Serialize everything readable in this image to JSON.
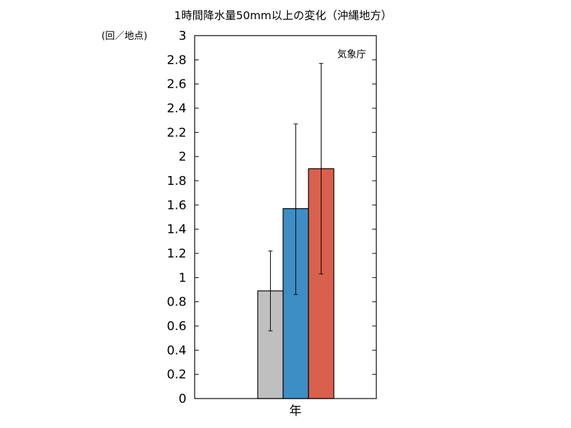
{
  "chart_data": {
    "type": "bar",
    "title": "1時間降水量50mm以上の変化（沖縄地方）",
    "ylabel": "(回／地点)",
    "xlabel": "年",
    "source": "気象庁",
    "ylim": [
      0,
      3
    ],
    "yticks": [
      "0",
      "0.2",
      "0.4",
      "0.6",
      "0.8",
      "1",
      "1.2",
      "1.4",
      "1.6",
      "1.8",
      "2",
      "2.2",
      "2.4",
      "2.6",
      "2.8",
      "3"
    ],
    "grid": false,
    "bars": [
      {
        "value": 0.89,
        "err_low": 0.56,
        "err_high": 1.22,
        "color": "#bfbfbf"
      },
      {
        "value": 1.57,
        "err_low": 0.86,
        "err_high": 2.27,
        "color": "#3d8ec4"
      },
      {
        "value": 1.9,
        "err_low": 1.03,
        "err_high": 2.77,
        "color": "#d9604c"
      }
    ]
  }
}
